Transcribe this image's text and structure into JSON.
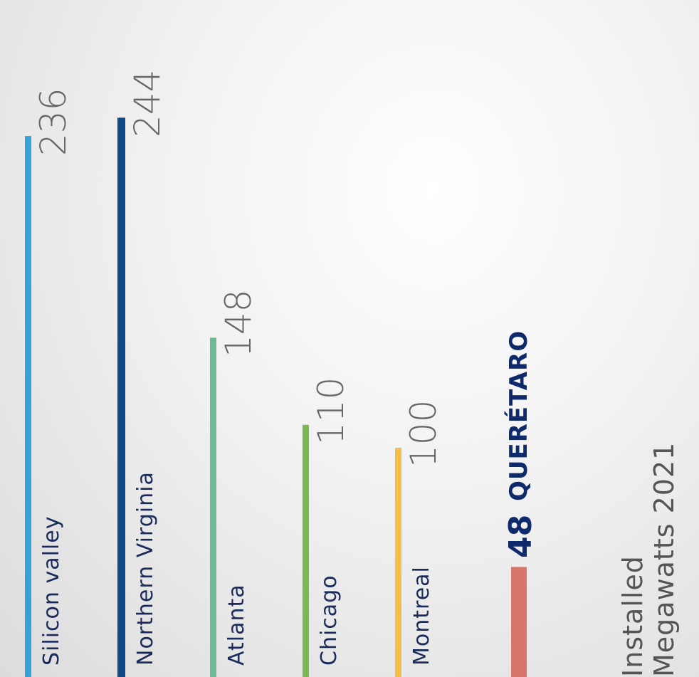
{
  "chart_data": {
    "type": "bar",
    "orientation": "vertical",
    "title": "Installed\nMegawatts 2021",
    "categories": [
      "Silicon valley",
      "Northern Virginia",
      "Atlanta",
      "Chicago",
      "Montreal",
      "QUERÉTARO"
    ],
    "values": [
      236,
      244,
      148,
      110,
      100,
      48
    ],
    "colors": [
      "#33a3d8",
      "#0d4a86",
      "#6cbb96",
      "#7ab854",
      "#f2c04a",
      "#d9766b"
    ],
    "highlight": "QUERÉTARO",
    "ylim": [
      0,
      260
    ]
  }
}
